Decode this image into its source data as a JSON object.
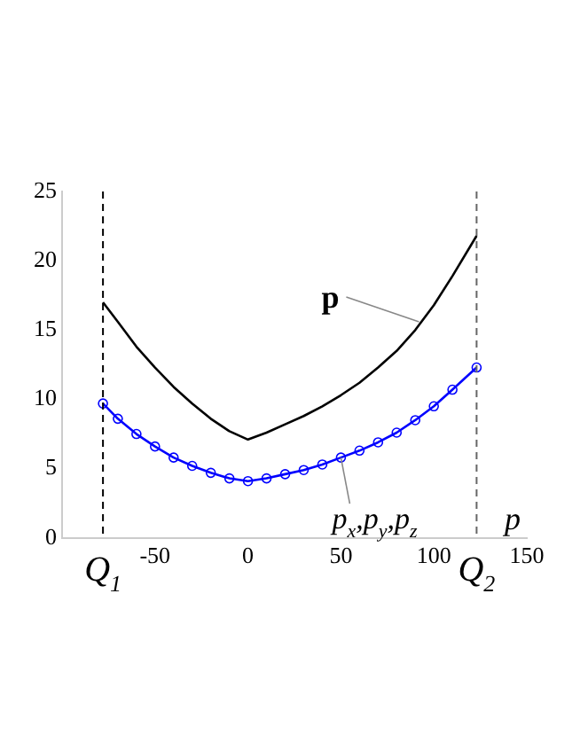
{
  "chart_data": {
    "type": "line",
    "xlabel": "p",
    "xlim": [
      -100,
      150
    ],
    "xticks": [
      -50,
      0,
      50,
      100,
      150
    ],
    "ylim": [
      0,
      25
    ],
    "yticks": [
      0,
      5,
      10,
      15,
      20,
      25
    ],
    "grid": false,
    "legend": false,
    "x": [
      -78,
      -70,
      -60,
      -50,
      -40,
      -30,
      -20,
      -10,
      0,
      10,
      20,
      30,
      40,
      50,
      60,
      70,
      80,
      90,
      100,
      110,
      123
    ],
    "series": [
      {
        "color": "#000000",
        "marker": "none",
        "values": [
          17,
          15.6,
          13.8,
          12.3,
          10.9,
          9.7,
          8.6,
          7.7,
          7.1,
          7.6,
          8.2,
          8.8,
          9.5,
          10.3,
          11.2,
          12.3,
          13.5,
          15.0,
          16.8,
          18.9,
          21.8
        ]
      },
      {
        "color": "#0000ff",
        "marker": "circle",
        "values": [
          9.7,
          8.6,
          7.5,
          6.6,
          5.8,
          5.2,
          4.7,
          4.3,
          4.1,
          4.3,
          4.6,
          4.9,
          5.3,
          5.8,
          6.3,
          6.9,
          7.6,
          8.5,
          9.5,
          10.7,
          12.3
        ]
      }
    ],
    "ref_lines": [
      {
        "axis": "x",
        "value": -78,
        "label": "Q$_{1}$",
        "color": "#000000",
        "line_style": "dashed"
      },
      {
        "axis": "x",
        "value": 123,
        "label": "Q$_{2}$",
        "color": "#666666",
        "line_style": "dashed"
      }
    ],
    "annotations": [
      {
        "text": "p",
        "x": 92,
        "y": 15.6
      },
      {
        "text": "p$_{x}$,p$_{y}$,p$_{z}$",
        "x": 50,
        "y": 5.8
      }
    ]
  }
}
